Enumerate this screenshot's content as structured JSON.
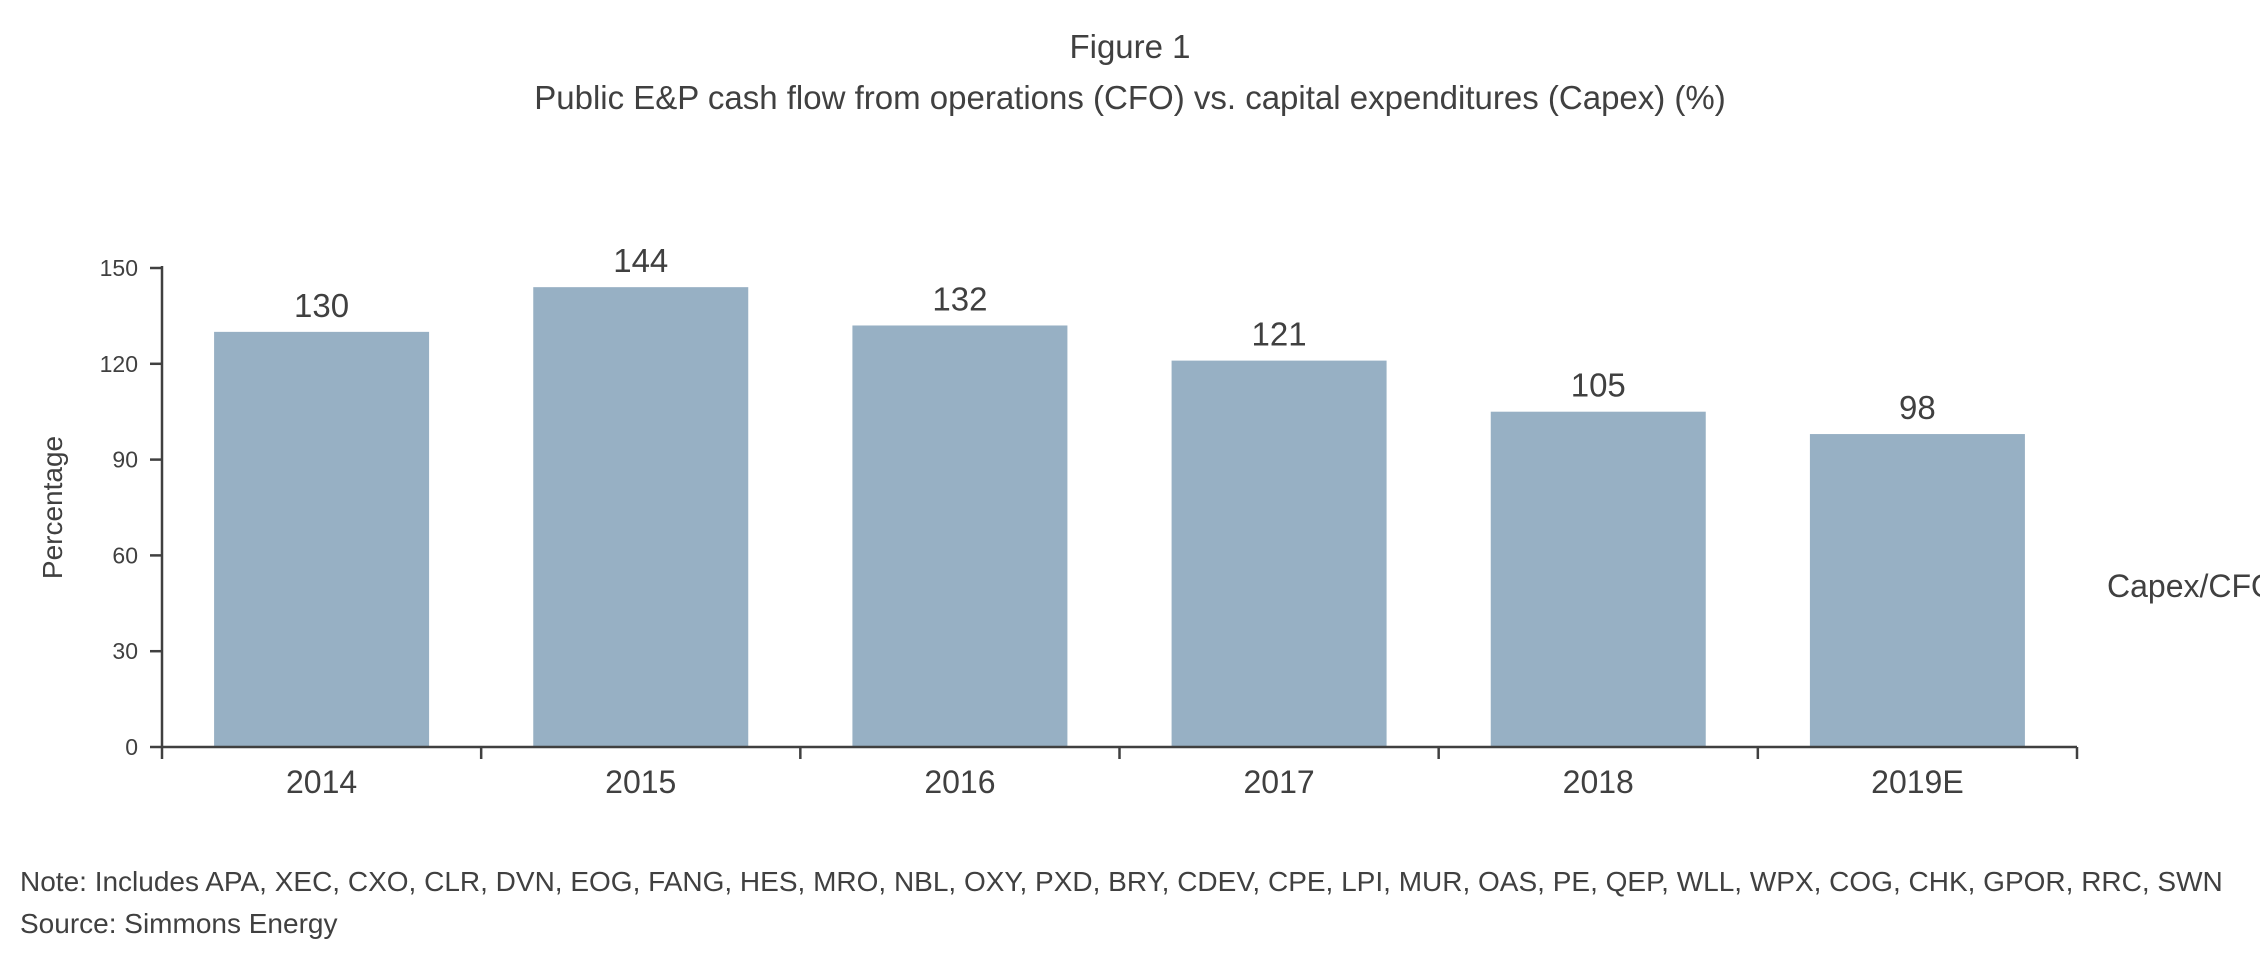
{
  "figure": {
    "label": "Figure 1",
    "title": "Public E&P cash flow from operations (CFO) vs. capital expenditures (Capex) (%)"
  },
  "chart_data": {
    "type": "bar",
    "title": "Public E&P cash flow from operations (CFO) vs. capital expenditures (Capex) (%)",
    "categories": [
      "2014",
      "2015",
      "2016",
      "2017",
      "2018",
      "2019E"
    ],
    "series": [
      {
        "name": "Capex/CFO",
        "values": [
          130,
          144,
          132,
          121,
          105,
          98
        ]
      }
    ],
    "data_labels": [
      "130",
      "144",
      "132",
      "121",
      "105",
      "98"
    ],
    "xlabel": "",
    "ylabel": "Percentage",
    "ylim": [
      0,
      150
    ],
    "yticks": [
      0,
      30,
      60,
      90,
      120,
      150
    ],
    "ytick_labels": [
      "0",
      "30",
      "60",
      "90",
      "120",
      "150"
    ],
    "grid": false,
    "legend": "right",
    "colors": {
      "bar": "#97b0c4",
      "axis": "#404040",
      "text": "#404040"
    }
  },
  "footer": {
    "note": "Note: Includes APA, XEC, CXO, CLR, DVN, EOG, FANG, HES, MRO, NBL, OXY, PXD, BRY, CDEV, CPE, LPI, MUR, OAS, PE, QEP, WLL, WPX, COG, CHK, GPOR, RRC, SWN",
    "source": "Source: Simmons Energy"
  }
}
